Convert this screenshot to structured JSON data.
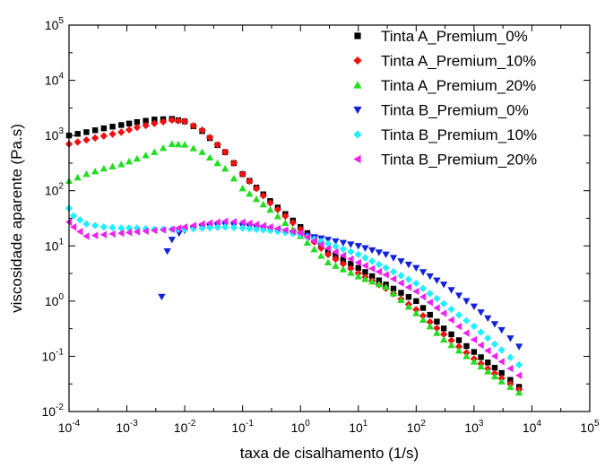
{
  "chart_data": {
    "type": "scatter",
    "xscale": "log",
    "yscale": "log",
    "xlabel": "taxa de cisalhamento (1/s)",
    "ylabel": "viscosidade aparente (Pa.s)",
    "xlim": [
      0.0001,
      100000
    ],
    "ylim": [
      0.01,
      100000
    ],
    "x_ticks": [
      {
        "value": 0.0001,
        "base": "10",
        "exp": "-4"
      },
      {
        "value": 0.001,
        "base": "10",
        "exp": "-3"
      },
      {
        "value": 0.01,
        "base": "10",
        "exp": "-2"
      },
      {
        "value": 0.1,
        "base": "10",
        "exp": "-1"
      },
      {
        "value": 1,
        "base": "10",
        "exp": "0"
      },
      {
        "value": 10,
        "base": "10",
        "exp": "1"
      },
      {
        "value": 100,
        "base": "10",
        "exp": "2"
      },
      {
        "value": 1000,
        "base": "10",
        "exp": "3"
      },
      {
        "value": 10000,
        "base": "10",
        "exp": "4"
      },
      {
        "value": 100000,
        "base": "10",
        "exp": "5"
      }
    ],
    "y_ticks": [
      {
        "value": 0.01,
        "base": "10",
        "exp": "-2"
      },
      {
        "value": 0.1,
        "base": "10",
        "exp": "-1"
      },
      {
        "value": 1,
        "base": "10",
        "exp": "0"
      },
      {
        "value": 10,
        "base": "10",
        "exp": "1"
      },
      {
        "value": 100,
        "base": "10",
        "exp": "2"
      },
      {
        "value": 1000,
        "base": "10",
        "exp": "3"
      },
      {
        "value": 10000,
        "base": "10",
        "exp": "4"
      },
      {
        "value": 100000,
        "base": "10",
        "exp": "5"
      }
    ],
    "grid": false,
    "legend_position": "top-right",
    "series": [
      {
        "name": "Tinta A_Premium_0%",
        "marker": "square",
        "color": "#000000",
        "points": [
          [
            0.0001,
            1000
          ],
          [
            0.0002,
            1150
          ],
          [
            0.0004,
            1350
          ],
          [
            0.0008,
            1550
          ],
          [
            0.0015,
            1750
          ],
          [
            0.003,
            1950
          ],
          [
            0.006,
            2000
          ],
          [
            0.01,
            1800
          ],
          [
            0.02,
            1200
          ],
          [
            0.05,
            500
          ],
          [
            0.1,
            200
          ],
          [
            0.3,
            65
          ],
          [
            1,
            22
          ],
          [
            3,
            8
          ],
          [
            10,
            4
          ],
          [
            30,
            2
          ],
          [
            100,
            1
          ],
          [
            300,
            0.32
          ],
          [
            1000,
            0.12
          ],
          [
            3000,
            0.05
          ],
          [
            6000,
            0.028
          ]
        ]
      },
      {
        "name": "Tinta A_Premium_10%",
        "marker": "diamond",
        "color": "#ee1111",
        "points": [
          [
            0.0001,
            700
          ],
          [
            0.0002,
            830
          ],
          [
            0.0004,
            980
          ],
          [
            0.0008,
            1150
          ],
          [
            0.0015,
            1400
          ],
          [
            0.003,
            1650
          ],
          [
            0.006,
            1900
          ],
          [
            0.01,
            1800
          ],
          [
            0.02,
            1250
          ],
          [
            0.05,
            500
          ],
          [
            0.1,
            200
          ],
          [
            0.3,
            60
          ],
          [
            1,
            20
          ],
          [
            3,
            7
          ],
          [
            10,
            3.2
          ],
          [
            30,
            1.7
          ],
          [
            100,
            0.7
          ],
          [
            300,
            0.25
          ],
          [
            1000,
            0.09
          ],
          [
            3000,
            0.04
          ],
          [
            6000,
            0.025
          ]
        ]
      },
      {
        "name": "Tinta A_Premium_20%",
        "marker": "triangle-up",
        "color": "#22dd22",
        "points": [
          [
            0.0001,
            150
          ],
          [
            0.0002,
            200
          ],
          [
            0.0004,
            250
          ],
          [
            0.0008,
            300
          ],
          [
            0.0015,
            380
          ],
          [
            0.003,
            500
          ],
          [
            0.006,
            700
          ],
          [
            0.01,
            680
          ],
          [
            0.02,
            500
          ],
          [
            0.05,
            250
          ],
          [
            0.1,
            110
          ],
          [
            0.3,
            45
          ],
          [
            1,
            15
          ],
          [
            3,
            5
          ],
          [
            10,
            2.8
          ],
          [
            30,
            1.8
          ],
          [
            100,
            0.6
          ],
          [
            300,
            0.2
          ],
          [
            1000,
            0.08
          ],
          [
            3000,
            0.035
          ],
          [
            6000,
            0.022
          ]
        ]
      },
      {
        "name": "Tinta B_Premium_0%",
        "marker": "triangle-down",
        "color": "#1122dd",
        "points": [
          [
            0.004,
            1.2
          ],
          [
            0.005,
            8
          ],
          [
            0.006,
            13
          ],
          [
            0.008,
            17
          ],
          [
            0.01,
            19
          ],
          [
            0.02,
            22
          ],
          [
            0.05,
            24
          ],
          [
            0.1,
            23
          ],
          [
            0.3,
            20
          ],
          [
            1,
            16
          ],
          [
            3,
            13
          ],
          [
            10,
            10
          ],
          [
            30,
            7
          ],
          [
            100,
            4
          ],
          [
            300,
            2
          ],
          [
            1000,
            0.8
          ],
          [
            3000,
            0.3
          ],
          [
            6000,
            0.15
          ]
        ]
      },
      {
        "name": "Tinta B_Premium_10%",
        "marker": "diamond",
        "color": "#22eeff",
        "points": [
          [
            0.0001,
            48
          ],
          [
            0.00012,
            35
          ],
          [
            0.0002,
            25
          ],
          [
            0.0004,
            22
          ],
          [
            0.0008,
            21
          ],
          [
            0.0015,
            21
          ],
          [
            0.003,
            20
          ],
          [
            0.006,
            20
          ],
          [
            0.01,
            20
          ],
          [
            0.02,
            21
          ],
          [
            0.05,
            22
          ],
          [
            0.1,
            21
          ],
          [
            0.3,
            19
          ],
          [
            1,
            16
          ],
          [
            3,
            11
          ],
          [
            10,
            7
          ],
          [
            30,
            4
          ],
          [
            100,
            2.1
          ],
          [
            300,
            0.9
          ],
          [
            1000,
            0.35
          ],
          [
            3000,
            0.13
          ],
          [
            6000,
            0.07
          ]
        ]
      },
      {
        "name": "Tinta B_Premium_20%",
        "marker": "triangle-left",
        "color": "#ee22ee",
        "points": [
          [
            0.0001,
            27
          ],
          [
            0.00012,
            22
          ],
          [
            0.0002,
            15
          ],
          [
            0.0004,
            16
          ],
          [
            0.0008,
            17
          ],
          [
            0.0015,
            18
          ],
          [
            0.003,
            19
          ],
          [
            0.006,
            20
          ],
          [
            0.01,
            22
          ],
          [
            0.02,
            25
          ],
          [
            0.05,
            28
          ],
          [
            0.1,
            27
          ],
          [
            0.3,
            22
          ],
          [
            1,
            17
          ],
          [
            3,
            9
          ],
          [
            10,
            5
          ],
          [
            30,
            3
          ],
          [
            100,
            1.5
          ],
          [
            300,
            0.6
          ],
          [
            1000,
            0.2
          ],
          [
            3000,
            0.08
          ],
          [
            6000,
            0.045
          ]
        ]
      }
    ]
  }
}
